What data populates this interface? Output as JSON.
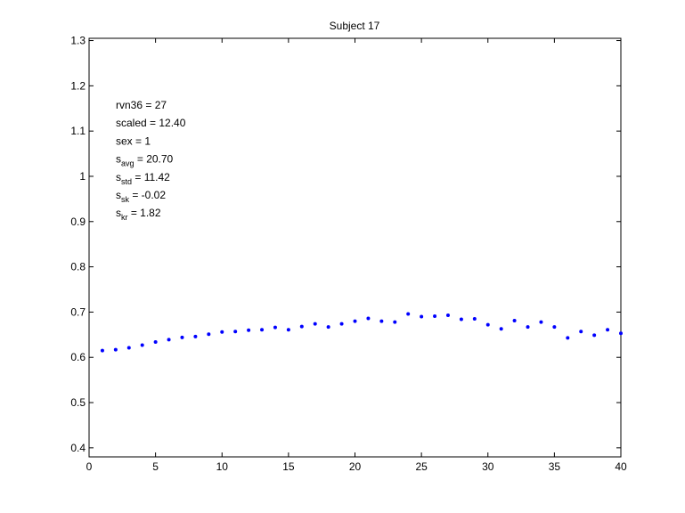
{
  "chart_data": {
    "type": "scatter",
    "title": "Subject 17",
    "xlabel": "",
    "ylabel": "",
    "xlim": [
      0,
      40
    ],
    "ylim": [
      0.38,
      1.305
    ],
    "x_ticks": [
      0,
      5,
      10,
      15,
      20,
      25,
      30,
      35,
      40
    ],
    "y_ticks": [
      0.4,
      0.5,
      0.6,
      0.7,
      0.8,
      0.9,
      1,
      1.1,
      1.2,
      1.3
    ],
    "grid": false,
    "marker_color": "#0000ff",
    "series": [
      {
        "x": [
          1,
          2,
          3,
          4,
          5,
          6,
          7,
          8,
          9,
          10,
          11,
          12,
          13,
          14,
          15,
          16,
          17,
          18,
          19,
          20,
          21,
          22,
          23,
          24,
          25,
          26,
          27,
          28,
          29,
          30,
          31,
          32,
          33,
          34,
          35,
          36,
          37,
          38,
          39,
          40
        ],
        "y": [
          0.615,
          0.617,
          0.621,
          0.627,
          0.634,
          0.639,
          0.644,
          0.646,
          0.651,
          0.656,
          0.657,
          0.66,
          0.661,
          0.666,
          0.661,
          0.668,
          0.674,
          0.667,
          0.674,
          0.68,
          0.686,
          0.68,
          0.678,
          0.696,
          0.69,
          0.691,
          0.693,
          0.684,
          0.685,
          0.672,
          0.663,
          0.681,
          0.667,
          0.678,
          0.667,
          0.643,
          0.657,
          0.649,
          0.661,
          0.653
        ]
      }
    ],
    "annotations": [
      {
        "base": "rvn36 = 27",
        "sub": "",
        "rest": ""
      },
      {
        "base": "scaled = 12.40",
        "sub": "",
        "rest": ""
      },
      {
        "base": "sex   = 1",
        "sub": "",
        "rest": ""
      },
      {
        "base": "s",
        "sub": "avg",
        "rest": " = 20.70"
      },
      {
        "base": "s",
        "sub": "std",
        "rest": " = 11.42"
      },
      {
        "base": "s",
        "sub": "sk",
        "rest": " = -0.02"
      },
      {
        "base": "s",
        "sub": "kr",
        "rest": " = 1.82"
      }
    ]
  }
}
